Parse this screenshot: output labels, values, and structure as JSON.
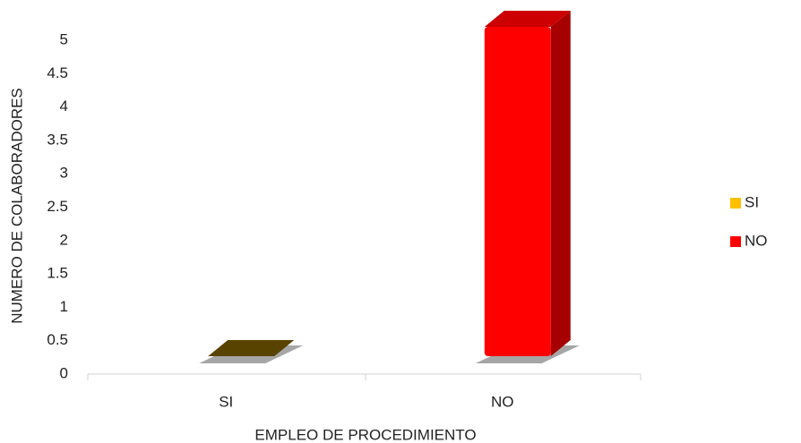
{
  "chart_data": {
    "type": "bar3d",
    "x_label": "EMPLEO DE PROCEDIMIENTO",
    "y_label": "NUMERO DE COLABORADORES",
    "categories": [
      "SI",
      "NO"
    ],
    "values": [
      0,
      5
    ],
    "colors": [
      "#ffc000",
      "#ff0000"
    ],
    "ylim": [
      0,
      5
    ],
    "yticks": [
      0,
      0.5,
      1,
      1.5,
      2,
      2.5,
      3,
      3.5,
      4,
      4.5,
      5
    ],
    "grid": false,
    "legend": "right"
  }
}
